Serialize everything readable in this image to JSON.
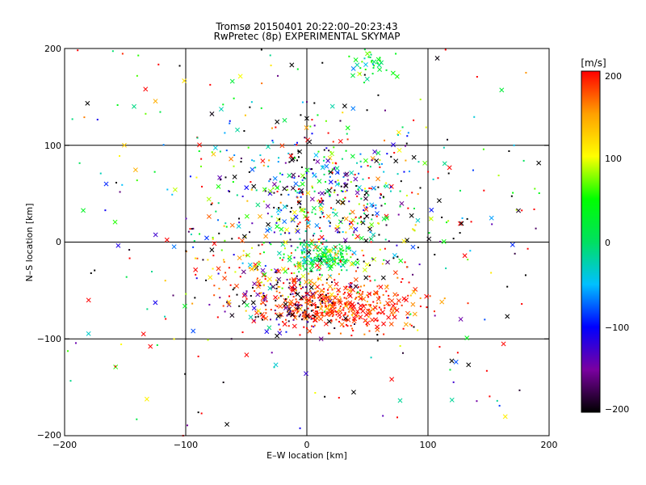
{
  "chart_data": {
    "type": "scatter",
    "title": "Tromsø 20150401 20:22:00–20:23:43",
    "subtitle": "RwPretec (8p) EXPERIMENTAL SKYMAP",
    "xlabel": "E–W location [km]",
    "ylabel": "N–S location [km]",
    "xlim": [
      -200,
      200
    ],
    "ylim": [
      -200,
      200
    ],
    "x_ticks": [
      "−200",
      "−100",
      "0",
      "100",
      "200"
    ],
    "y_ticks": [
      "−200",
      "−100",
      "0",
      "100",
      "200"
    ],
    "grid": true,
    "markers": [
      "dot",
      "cross"
    ],
    "colorbar": {
      "label": "[m/s]",
      "range": [
        -200,
        200
      ],
      "ticks": [
        "200",
        "100",
        "0",
        "−100",
        "−200"
      ],
      "colors": [
        "#000000",
        "#7a00a0",
        "#0000ff",
        "#00c0ff",
        "#00e060",
        "#00ff00",
        "#ffff00",
        "#ffa000",
        "#ff0000"
      ]
    },
    "clusters": [
      {
        "center": [
          25,
          -65
        ],
        "spread": [
          35,
          12
        ],
        "count": 420,
        "velocity": 185,
        "velocity_spread": 25
      },
      {
        "center": [
          -20,
          -60
        ],
        "spread": [
          25,
          15
        ],
        "count": 120,
        "velocity": -180,
        "velocity_spread": 30
      },
      {
        "center": [
          15,
          -15
        ],
        "spread": [
          15,
          8
        ],
        "count": 160,
        "velocity": 10,
        "velocity_spread": 30
      },
      {
        "center": [
          -30,
          -30
        ],
        "spread": [
          30,
          20
        ],
        "count": 120,
        "velocity": 160,
        "velocity_spread": 60
      },
      {
        "center": [
          25,
          40
        ],
        "spread": [
          40,
          35
        ],
        "count": 300,
        "velocity": 0,
        "velocity_spread": 190
      },
      {
        "center": [
          -20,
          50
        ],
        "spread": [
          50,
          45
        ],
        "count": 250,
        "velocity": -60,
        "velocity_spread": 140
      },
      {
        "center": [
          50,
          185
        ],
        "spread": [
          12,
          10
        ],
        "count": 40,
        "velocity": 30,
        "velocity_spread": 30
      },
      {
        "center": [
          0,
          0
        ],
        "spread": [
          150,
          150
        ],
        "count": 450,
        "velocity": 0,
        "velocity_spread": 200
      }
    ]
  }
}
